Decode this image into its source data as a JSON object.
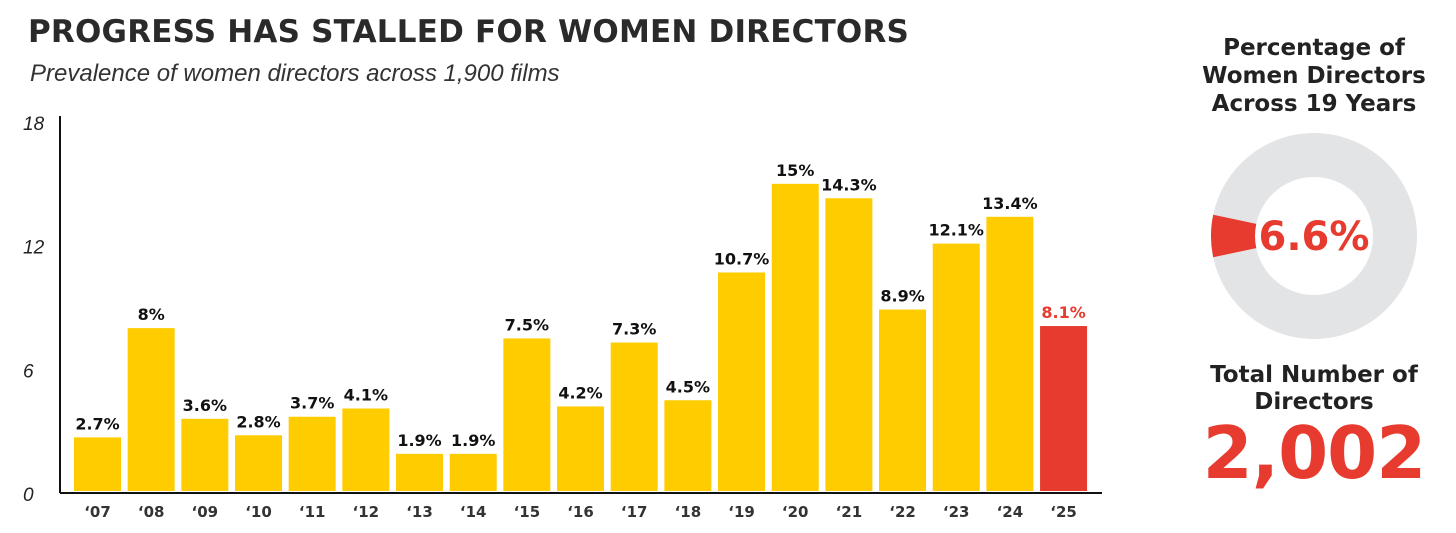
{
  "chart_data": {
    "type": "bar",
    "title": "PROGRESS HAS STALLED FOR WOMEN DIRECTORS",
    "subtitle": "Prevalence of women directors across 1,900 films",
    "categories": [
      "‘07",
      "‘08",
      "‘09",
      "‘10",
      "‘11",
      "‘12",
      "‘13",
      "‘14",
      "‘15",
      "‘16",
      "‘17",
      "‘18",
      "‘19",
      "‘20",
      "‘21",
      "‘22",
      "‘23",
      "‘24",
      "‘25"
    ],
    "values": [
      2.7,
      8,
      3.6,
      2.8,
      3.7,
      4.1,
      1.9,
      1.9,
      7.5,
      4.2,
      7.3,
      4.5,
      10.7,
      15,
      14.3,
      8.9,
      12.1,
      13.4,
      8.1
    ],
    "labels": [
      "2.7%",
      "8%",
      "3.6%",
      "2.8%",
      "3.7%",
      "4.1%",
      "1.9%",
      "1.9%",
      "7.5%",
      "4.2%",
      "7.3%",
      "4.5%",
      "10.7%",
      "15%",
      "14.3%",
      "8.9%",
      "12.1%",
      "13.4%",
      "8.1%"
    ],
    "highlight_index": 18,
    "ylim": [
      0,
      18
    ],
    "yticks": [
      0,
      6,
      12,
      18
    ],
    "xlabel": "",
    "ylabel": "",
    "grid": false
  },
  "side": {
    "donut_title": "Percentage of Women Directors Across 19 Years",
    "donut_value": 6.6,
    "donut_label": "6.6%",
    "total_title": "Total Number of Directors",
    "total_value": "2,002"
  },
  "colors": {
    "bar": "#FFCC00",
    "highlight": "#E63B2E",
    "highlight_label": "#E63B2E",
    "text": "#111111",
    "donut_track": "#E3E4E6",
    "axis": "#111111"
  }
}
